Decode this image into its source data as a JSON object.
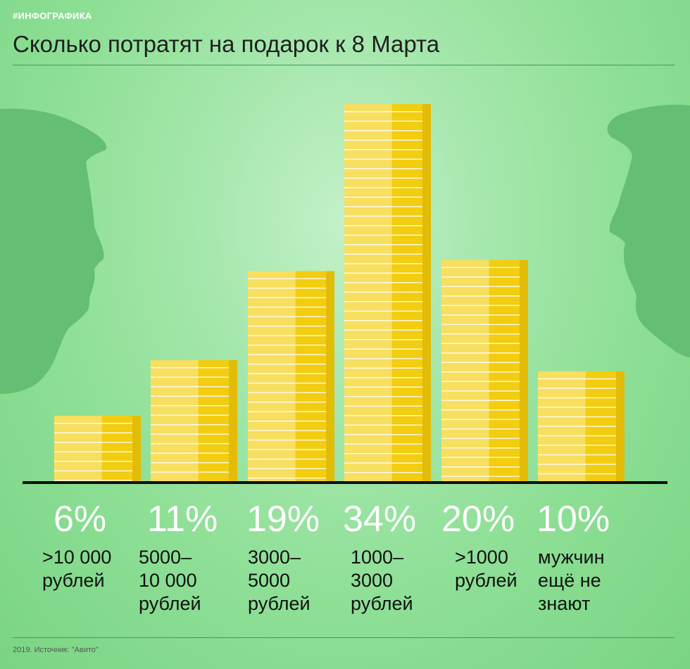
{
  "header": {
    "tag": "#ИНФОГРАФИКА",
    "title": "Сколько потратят на подарок к 8 Марта"
  },
  "footer": {
    "source": "2019. Источник: \"Авито\""
  },
  "colors": {
    "coin": "#f2cd10",
    "coin_shade": "#d7ae00",
    "baseline": "#111111",
    "silhouette": "#62bd72"
  },
  "chart_data": {
    "type": "bar",
    "categories": [
      ">10 000 рублей",
      "5000–10 000 рублей",
      "3000–5000 рублей",
      "1000–3000 рублей",
      ">1000 рублей",
      "мужчин ещё не знают"
    ],
    "values": [
      6,
      11,
      19,
      34,
      20,
      10
    ],
    "value_labels": [
      "6%",
      "11%",
      "19%",
      "34%",
      "20%",
      "10%"
    ],
    "category_lines": [
      ">10 000\nрублей",
      "5000–\n10 000\nрублей",
      "3000–\n5000\nрублей",
      "1000–\n3000\nрублей",
      ">1000\nрублей",
      "мужчин\nещё не\nзнают"
    ],
    "unit": "%",
    "ylim": [
      0,
      34
    ],
    "grid": false,
    "legend": "none"
  }
}
